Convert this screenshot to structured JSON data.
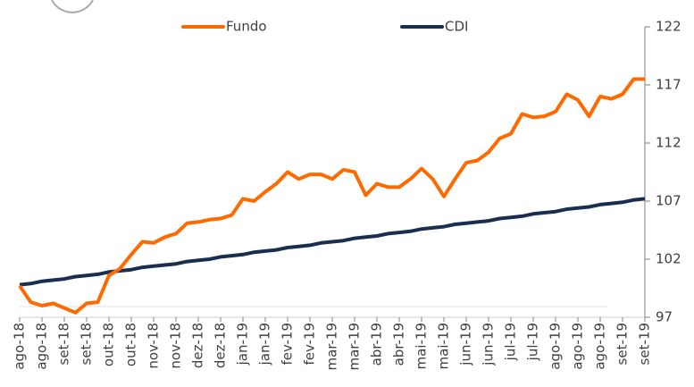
{
  "chart_data": {
    "type": "line",
    "categories": [
      "ago-18",
      null,
      "ago-18",
      null,
      "set-18",
      null,
      "set-18",
      null,
      "out-18",
      null,
      "out-18",
      null,
      "nov-18",
      null,
      "nov-18",
      null,
      "dez-18",
      null,
      "dez-18",
      null,
      "jan-19",
      null,
      "jan-19",
      null,
      "fev-19",
      null,
      "fev-19",
      null,
      "mar-19",
      null,
      "mar-19",
      null,
      "abr-19",
      null,
      "abr-19",
      null,
      "mai-19",
      null,
      "mai-19",
      null,
      "jun-19",
      null,
      "jun-19",
      null,
      "jul-19",
      null,
      "jul-19",
      null,
      "ago-19",
      null,
      "ago-19",
      null,
      "ago-19",
      null,
      "set-19",
      null,
      "set-19"
    ],
    "series": [
      {
        "name": "Fundo",
        "color": "#ff6a00",
        "values": [
          99.7,
          98.3,
          98.0,
          98.2,
          97.8,
          97.4,
          98.2,
          98.3,
          100.6,
          101.2,
          102.4,
          103.5,
          103.4,
          103.9,
          104.2,
          105.1,
          105.2,
          105.4,
          105.5,
          105.8,
          107.2,
          107.0,
          107.8,
          108.5,
          109.5,
          108.9,
          109.3,
          109.3,
          108.9,
          109.7,
          109.5,
          107.5,
          108.5,
          108.2,
          108.2,
          108.9,
          109.8,
          108.9,
          107.4,
          108.9,
          110.3,
          110.5,
          111.2,
          112.4,
          112.8,
          114.5,
          114.2,
          114.3,
          114.7,
          116.2,
          115.7,
          114.3,
          116.0,
          115.8,
          116.2,
          117.5,
          117.5
        ]
      },
      {
        "name": "CDI",
        "color": "#1a2e50",
        "values": [
          99.8,
          99.9,
          100.1,
          100.2,
          100.3,
          100.5,
          100.6,
          100.7,
          100.9,
          101.0,
          101.1,
          101.3,
          101.4,
          101.5,
          101.6,
          101.8,
          101.9,
          102.0,
          102.2,
          102.3,
          102.4,
          102.6,
          102.7,
          102.8,
          103.0,
          103.1,
          103.2,
          103.4,
          103.5,
          103.6,
          103.8,
          103.9,
          104.0,
          104.2,
          104.3,
          104.4,
          104.6,
          104.7,
          104.8,
          105.0,
          105.1,
          105.2,
          105.3,
          105.5,
          105.6,
          105.7,
          105.9,
          106.0,
          106.1,
          106.3,
          106.4,
          106.5,
          106.7,
          106.8,
          106.9,
          107.1,
          107.2
        ]
      }
    ],
    "ylim": [
      97,
      122
    ],
    "yticks": [
      97,
      102,
      107,
      112,
      117,
      122
    ]
  }
}
